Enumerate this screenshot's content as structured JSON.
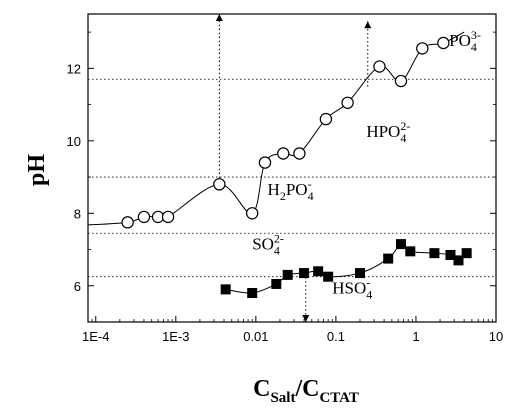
{
  "chart_data": {
    "type": "scatter",
    "xscale": "log",
    "xlim": [
      8e-05,
      10
    ],
    "ylim": [
      5.0,
      13.5
    ],
    "xticks": [
      0.0001,
      0.001,
      0.01,
      0.1,
      1,
      10
    ],
    "xtick_labels": [
      "1E-4",
      "1E-3",
      "0.01",
      "0.1",
      "1",
      "10"
    ],
    "yticks": [
      6,
      8,
      10,
      12
    ],
    "ytick_labels": [
      "6",
      "8",
      "10",
      "12"
    ],
    "ylabel": "pH",
    "xlabel_parts": [
      "C",
      "Salt",
      "/C",
      "CTAT"
    ],
    "series": [
      {
        "marker": "open-circle",
        "color": "#000000",
        "x": [
          0.00025,
          0.0004,
          0.0006,
          0.0008,
          0.0035,
          0.009,
          0.013,
          0.022,
          0.035,
          0.075,
          0.14,
          0.35,
          0.65,
          1.2,
          2.2
        ],
        "y": [
          7.75,
          7.9,
          7.9,
          7.9,
          8.8,
          8.0,
          9.4,
          9.65,
          9.65,
          10.6,
          11.05,
          12.05,
          11.65,
          12.55,
          12.7
        ]
      },
      {
        "marker": "filled-square",
        "color": "#000000",
        "x": [
          0.0042,
          0.009,
          0.018,
          0.025,
          0.04,
          0.06,
          0.08,
          0.2,
          0.45,
          0.65,
          0.85,
          1.7,
          2.7,
          3.4,
          4.3
        ],
        "y": [
          5.9,
          5.8,
          6.05,
          6.3,
          6.35,
          6.4,
          6.25,
          6.35,
          6.75,
          7.15,
          6.95,
          6.9,
          6.85,
          6.7,
          6.9
        ]
      }
    ],
    "annotations": [
      {
        "label": "PO",
        "sub": "4",
        "sup": "3-",
        "x": 2.6,
        "y": 12.62
      },
      {
        "label": "HPO",
        "sub": "4",
        "sup": "2-",
        "x": 0.24,
        "y": 10.1
      },
      {
        "label": "H",
        "mid": "2",
        "tail": "PO",
        "sub": "4",
        "sup": "-",
        "x": 0.014,
        "y": 8.5
      },
      {
        "label": "SO",
        "sub": "4",
        "sup": "2-",
        "x": 0.009,
        "y": 7.0
      },
      {
        "label": "HSO",
        "sub": "4",
        "sup": "-",
        "x": 0.09,
        "y": 5.78
      }
    ],
    "reference_lines_y": [
      11.7,
      9.0,
      7.45,
      6.25
    ],
    "arrows": [
      {
        "x": 0.0035,
        "from_y": 8.75,
        "to_y": 13.5
      },
      {
        "x": 0.25,
        "from_y": 11.5,
        "to_y": 13.3
      },
      {
        "x": 0.042,
        "from_y": 6.35,
        "to_y": 5.0
      }
    ]
  }
}
